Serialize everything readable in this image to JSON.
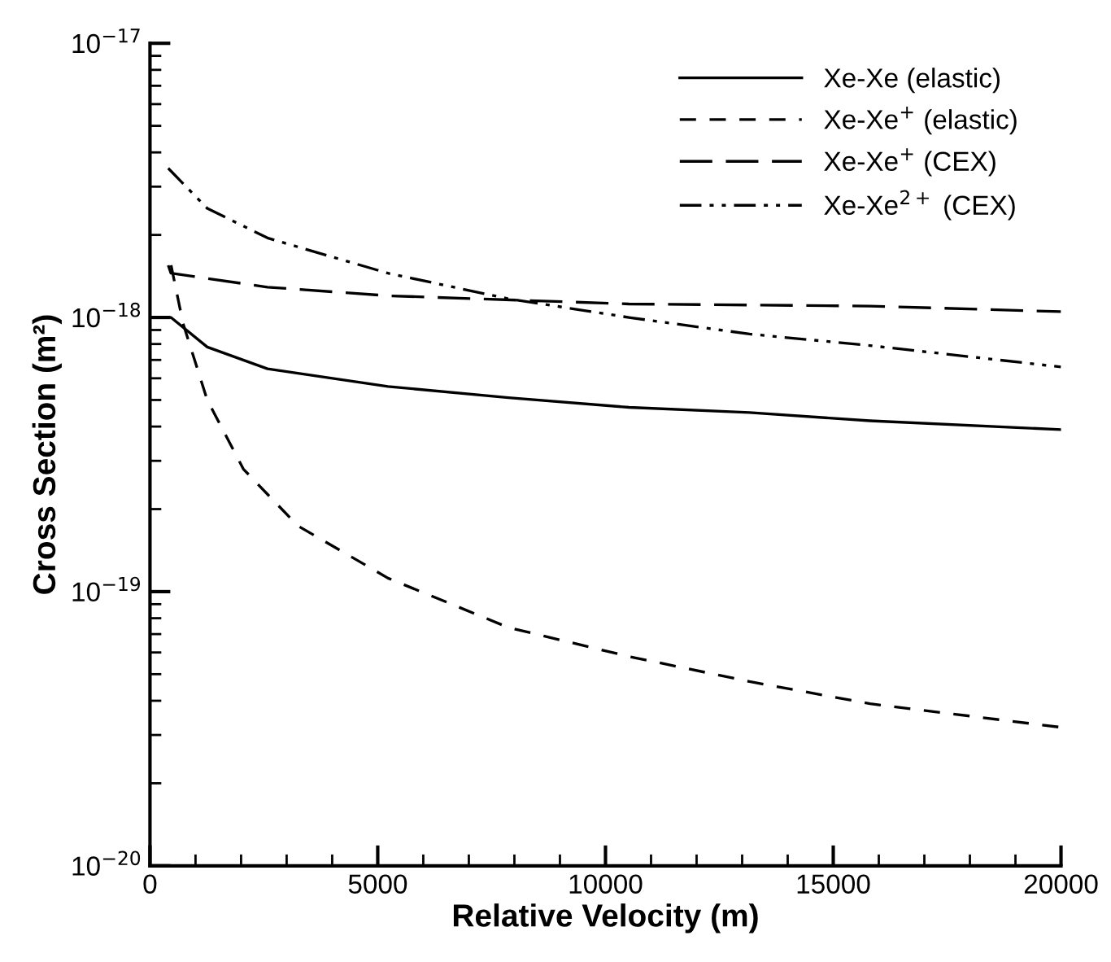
{
  "chart_data": {
    "type": "line",
    "xlabel": "Relative Velocity (m)",
    "ylabel": "Cross Section (m²)",
    "log": "y",
    "legend": "top right",
    "grid": false,
    "marker": "none",
    "xlim": [
      0,
      20000
    ],
    "ylim": [
      1e-20,
      1e-17
    ],
    "xticks": [
      0,
      {
        "value": 1000,
        "label": null
      },
      {
        "value": 2000,
        "label": null
      },
      {
        "value": 3000,
        "label": null
      },
      {
        "value": 4000,
        "label": null
      },
      5000,
      {
        "value": 6000,
        "label": null
      },
      {
        "value": 7000,
        "label": null
      },
      {
        "value": 8000,
        "label": null
      },
      {
        "value": 9000,
        "label": null
      },
      10000,
      {
        "value": 11000,
        "label": null
      },
      {
        "value": 12000,
        "label": null
      },
      {
        "value": 13000,
        "label": null
      },
      {
        "value": 14000,
        "label": null
      },
      15000,
      {
        "value": 16000,
        "label": null
      },
      {
        "value": 17000,
        "label": null
      },
      {
        "value": 18000,
        "label": null
      },
      {
        "value": 19000,
        "label": null
      },
      20000
    ],
    "yticks": [
      {
        "value": 1e-20,
        "label": "10$^{−20}$"
      },
      {
        "value": 2e-20,
        "label": null
      },
      {
        "value": 3e-20,
        "label": null
      },
      {
        "value": 4e-20,
        "label": null
      },
      {
        "value": 5e-20,
        "label": null
      },
      {
        "value": 6e-20,
        "label": null
      },
      {
        "value": 7e-20,
        "label": null
      },
      {
        "value": 8e-20,
        "label": null
      },
      {
        "value": 9e-20,
        "label": null
      },
      {
        "value": 1e-19,
        "label": "10$^{−19}$"
      },
      {
        "value": 2e-19,
        "label": null
      },
      {
        "value": 3e-19,
        "label": null
      },
      {
        "value": 4e-19,
        "label": null
      },
      {
        "value": 5e-19,
        "label": null
      },
      {
        "value": 6e-19,
        "label": null
      },
      {
        "value": 7e-19,
        "label": null
      },
      {
        "value": 8e-19,
        "label": null
      },
      {
        "value": 9e-19,
        "label": null
      },
      {
        "value": 1e-18,
        "label": "10$^{−18}$"
      },
      {
        "value": 2e-18,
        "label": null
      },
      {
        "value": 3e-18,
        "label": null
      },
      {
        "value": 4e-18,
        "label": null
      },
      {
        "value": 5e-18,
        "label": null
      },
      {
        "value": 6e-18,
        "label": null
      },
      {
        "value": 7e-18,
        "label": null
      },
      {
        "value": 8e-18,
        "label": null
      },
      {
        "value": 9e-18,
        "label": null
      },
      {
        "value": 1e-17,
        "label": "10$^{−17}$"
      }
    ],
    "series": [
      {
        "name": "Xe-Xe (elastic)",
        "color": "#000000",
        "line_style": "solid",
        "x": [
          300,
          460,
          1257,
          2579,
          5225,
          7870,
          10516,
          13161,
          15807,
          20000
        ],
        "values": [
          1e-18,
          1e-18,
          7.8e-19,
          6.5e-19,
          5.6e-19,
          5.1e-19,
          4.7e-19,
          4.5e-19,
          4.2e-19,
          3.9e-19
        ]
      },
      {
        "name": "Xe-Xe$^{+}$ (elastic)",
        "color": "#000000",
        "line_style": "dashed",
        "x": [
          463,
          727,
          1257,
          2050,
          3241,
          5225,
          7870,
          10516,
          13161,
          15807,
          20000
        ],
        "values": [
          1.55e-18,
          9.5e-19,
          5e-19,
          2.8e-19,
          1.74e-19,
          1.12e-19,
          7.4e-20,
          5.8e-20,
          4.7e-20,
          3.9e-20,
          3.2e-20
        ]
      },
      {
        "name": "Xe-Xe$^{+}$ (CEX)",
        "color": "#000000",
        "line_style": "longdashed",
        "x": [
          400,
          460,
          2579,
          5225,
          10516,
          15807,
          20000
        ],
        "values": [
          1.55e-18,
          1.45e-18,
          1.29e-18,
          1.2e-18,
          1.12e-18,
          1.1e-18,
          1.05e-18
        ]
      },
      {
        "name": "Xe-Xe$^{2+}$ (CEX)",
        "color": "#000000",
        "line_style": "dashdotdotted",
        "x": [
          400,
          1257,
          2579,
          5225,
          7870,
          10516,
          13161,
          15807,
          20000
        ],
        "values": [
          3.5e-18,
          2.5e-18,
          1.95e-18,
          1.45e-18,
          1.17e-18,
          1e-18,
          8.7e-19,
          7.9e-19,
          6.6e-19
        ]
      }
    ]
  }
}
